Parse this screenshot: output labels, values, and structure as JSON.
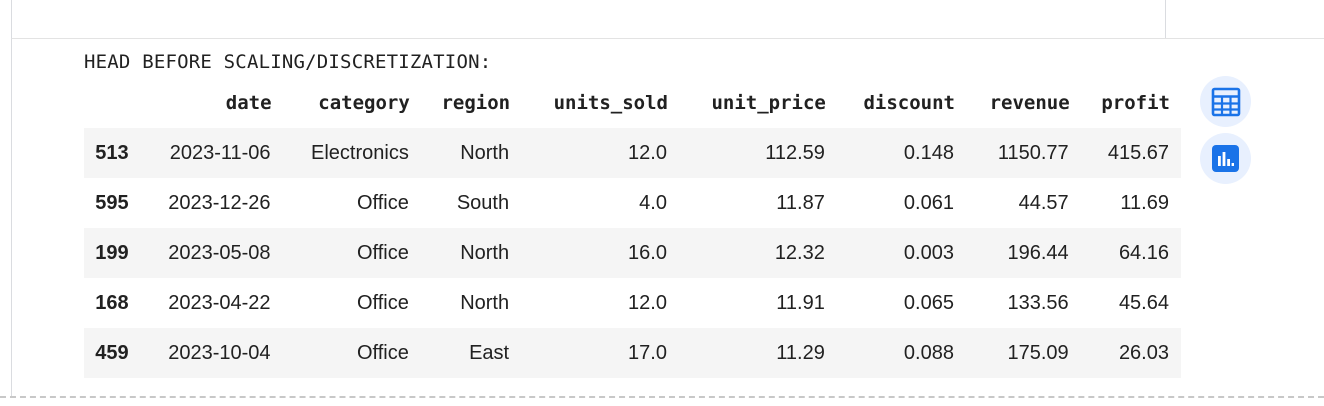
{
  "output": {
    "stdout_text": "HEAD BEFORE SCALING/DISCRETIZATION:"
  },
  "dataframe": {
    "columns": [
      "",
      "date",
      "category",
      "region",
      "units_sold",
      "unit_price",
      "discount",
      "revenue",
      "profit"
    ],
    "rows": [
      [
        "513",
        "2023-11-06",
        "Electronics",
        "North",
        "12.0",
        "112.59",
        "0.148",
        "1150.77",
        "415.67"
      ],
      [
        "595",
        "2023-12-26",
        "Office",
        "South",
        "4.0",
        "11.87",
        "0.061",
        "44.57",
        "11.69"
      ],
      [
        "199",
        "2023-05-08",
        "Office",
        "North",
        "16.0",
        "12.32",
        "0.003",
        "196.44",
        "64.16"
      ],
      [
        "168",
        "2023-04-22",
        "Office",
        "North",
        "12.0",
        "11.91",
        "0.065",
        "133.56",
        "45.64"
      ],
      [
        "459",
        "2023-10-04",
        "Office",
        "East",
        "17.0",
        "11.29",
        "0.088",
        "175.09",
        "26.03"
      ]
    ]
  },
  "side_buttons": {
    "table_icon": "table-icon",
    "chart_icon": "bar-chart-icon",
    "accent_color": "#1a73e8",
    "button_bg": "#e8f0fe"
  }
}
